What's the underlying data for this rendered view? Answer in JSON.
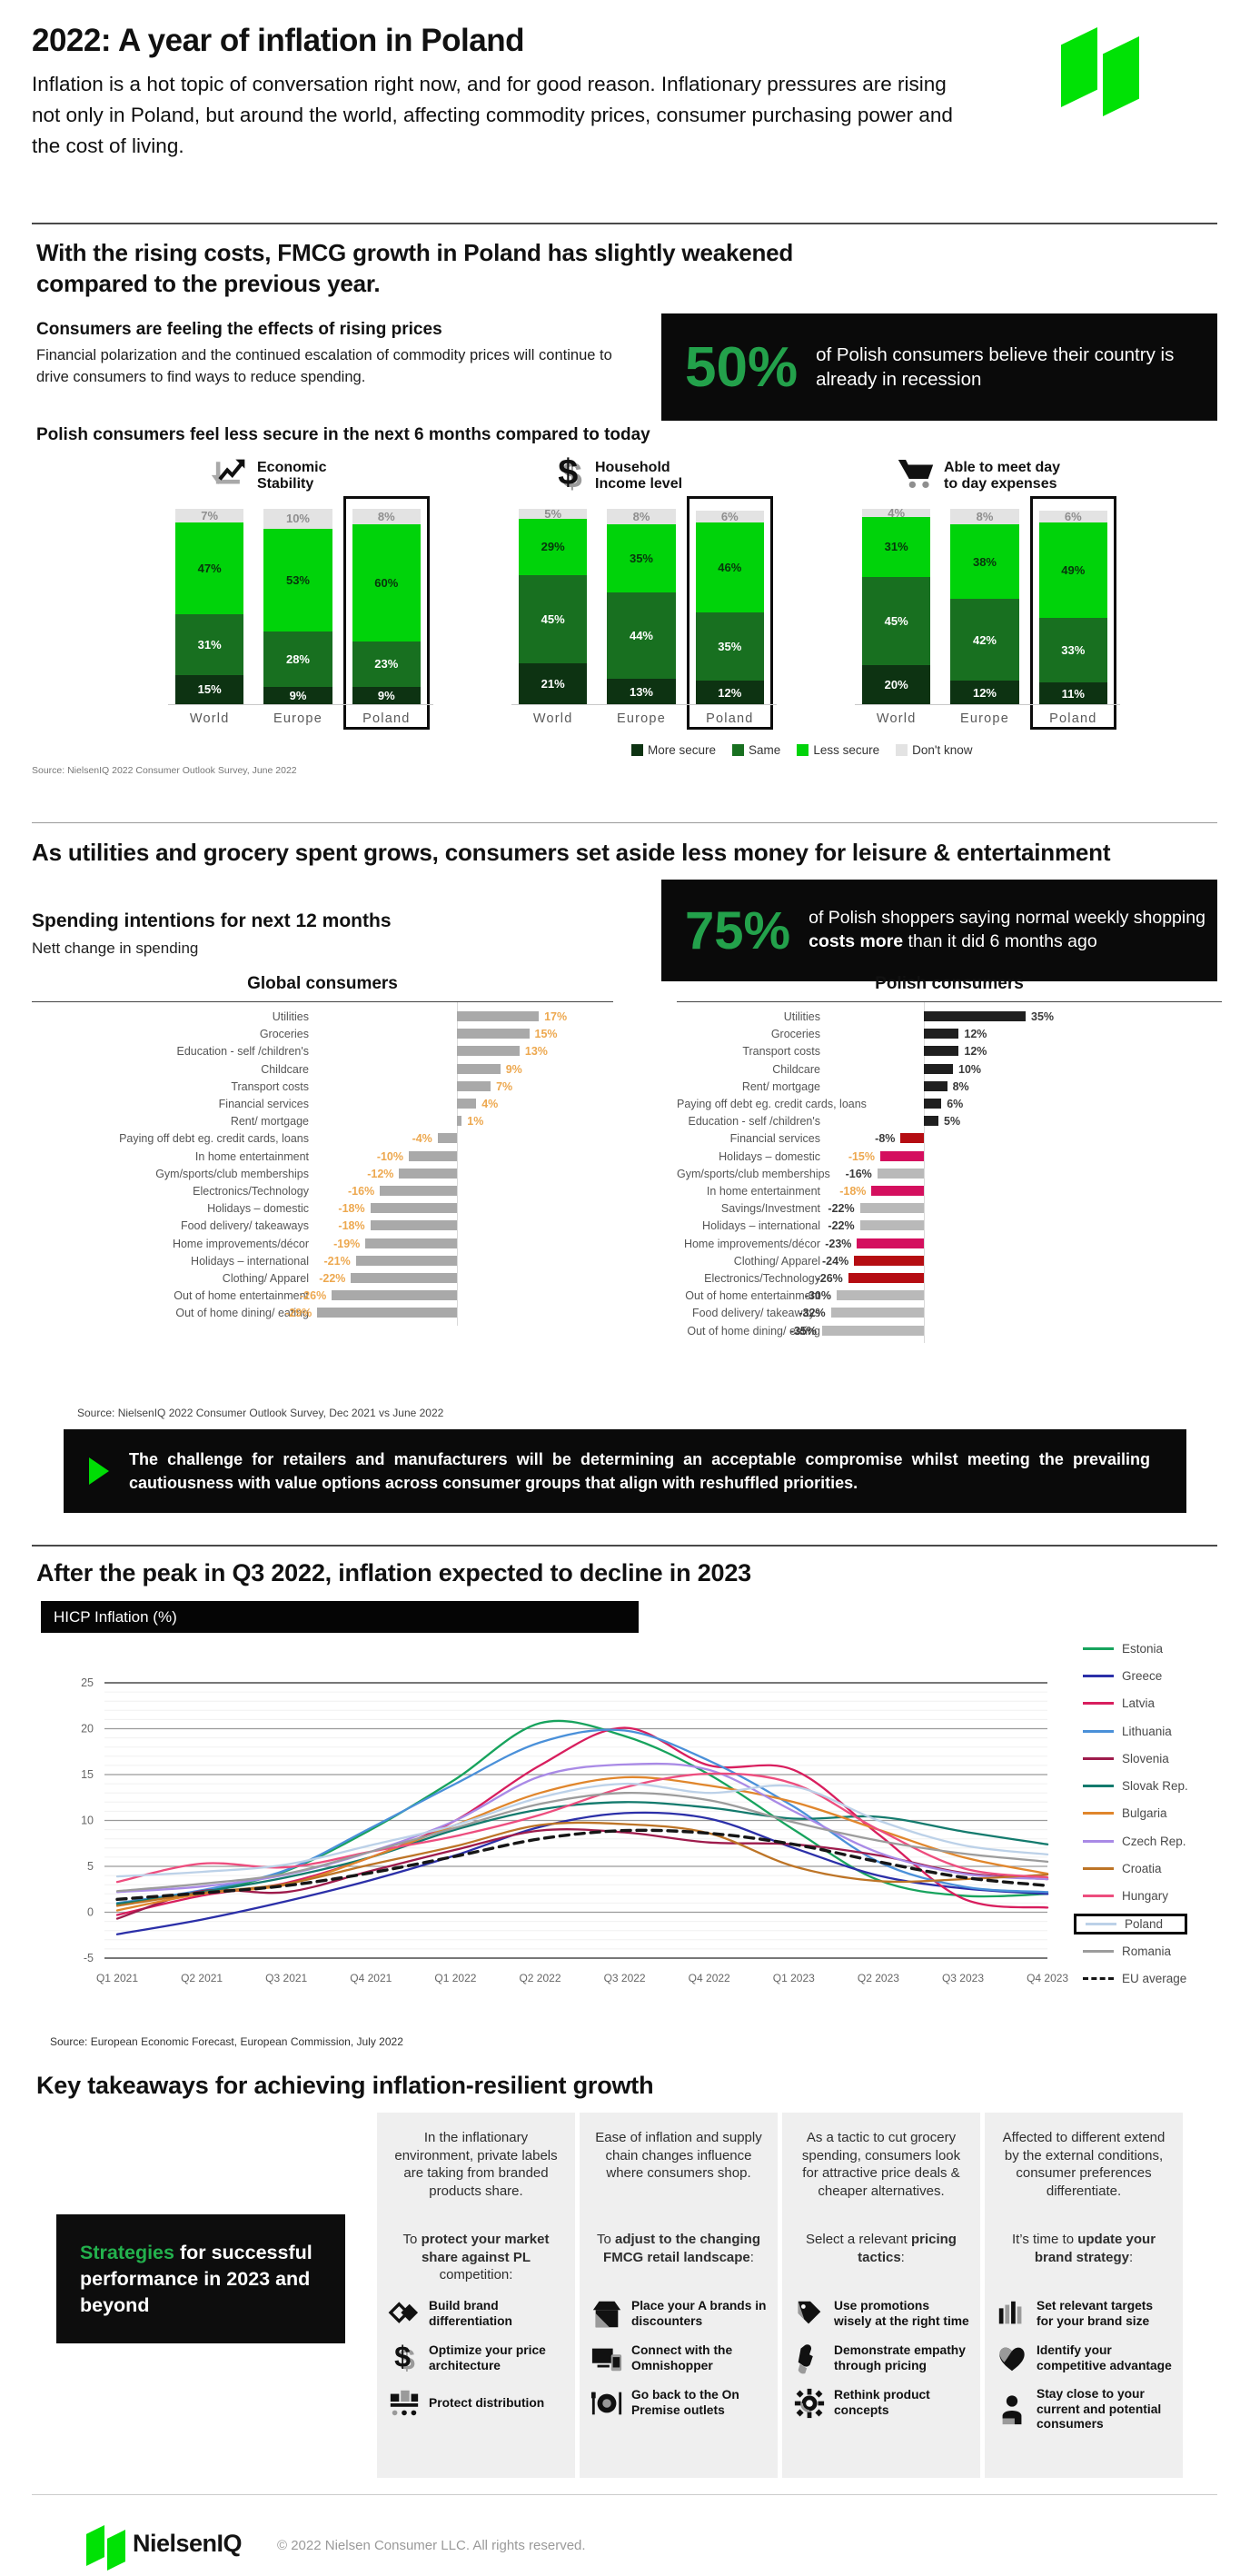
{
  "header": {
    "title": "2022: A year of inflation in Poland",
    "intro": "Inflation is a hot topic of conversation right now, and for good reason. Inflationary pressures are rising not only in Poland, but around the world, affecting commodity prices, consumer purchasing power and the cost of living.",
    "brand": "NielsenIQ"
  },
  "section_fmcg": {
    "heading": "With the rising costs, FMCG growth in Poland has slightly weakened compared to the previous year.",
    "lead_title": "Consumers are feeling the effects of rising prices",
    "lead_body": "Financial polarization and the continued escalation of commodity prices will continue to drive consumers to find ways to reduce spending.",
    "stat_value": "50%",
    "stat_text": "of Polish consumers believe their country is already in recession",
    "chart_title": "Polish consumers feel less secure in the next 6 months compared to today",
    "source": "Source: NielsenIQ 2022 Consumer Outlook Survey,  June 2022"
  },
  "section_spending": {
    "heading": "As utilities and grocery spent grows, consumers set aside less money for leisure & entertainment",
    "sub_title": "Spending intentions for next 12 months",
    "sub_note": "Nett change in spending",
    "stat_value": "75%",
    "stat_parts": [
      {
        "t": "of Polish shoppers saying normal weekly shopping "
      },
      {
        "t": "costs more",
        "b": true
      },
      {
        "t": " than it did 6 months ago"
      }
    ],
    "global_title": "Global consumers",
    "polish_title": "Polish consumers",
    "source": "Source: NielsenIQ 2022 Consumer Outlook Survey, Dec 2021  vs June 2022"
  },
  "callout": {
    "text": "The challenge for retailers and manufacturers will be determining an acceptable compromise whilst meeting the prevailing cautiousness with value options across consumer groups that align with reshuffled priorities."
  },
  "section_inflation": {
    "heading": "After the peak in Q3 2022, inflation expected to decline in 2023",
    "banner": "HICP Inflation (%)",
    "source": "Source:  European Economic Forecast, European Commission, July 2022"
  },
  "takeaways": {
    "heading": "Key takeaways for achieving inflation-resilient growth",
    "strategies_parts": [
      {
        "t": "Strategies",
        "g": true
      },
      {
        "t": " for successful performance in 2023 and beyond"
      }
    ],
    "columns": [
      {
        "intro": "In the inflationary environment, private labels are taking from branded products share.",
        "lead_parts": [
          {
            "t": "To "
          },
          {
            "t": "protect your market share against PL",
            "b": true
          },
          {
            "t": " competition:"
          }
        ],
        "items": [
          {
            "icon": "brand-differentiation-icon",
            "label": "Build brand differentiation"
          },
          {
            "icon": "price-architecture-icon",
            "label": "Optimize your price architecture"
          },
          {
            "icon": "distribution-icon",
            "label": "Protect distribution"
          }
        ]
      },
      {
        "intro": "Ease of inflation and supply chain changes influence where consumers shop.",
        "lead_parts": [
          {
            "t": "To "
          },
          {
            "t": "adjust to the changing FMCG retail landscape",
            "b": true
          },
          {
            "t": ":"
          }
        ],
        "items": [
          {
            "icon": "discounter-icon",
            "label": "Place your A brands in discounters"
          },
          {
            "icon": "omnishopper-icon",
            "label": "Connect with the Omnishopper"
          },
          {
            "icon": "on-premise-icon",
            "label": "Go back to the On Premise outlets"
          }
        ]
      },
      {
        "intro": "As a tactic to cut grocery spending, consumers look for attractive price deals & cheaper alternatives.",
        "lead_parts": [
          {
            "t": "Select a relevant "
          },
          {
            "t": "pricing tactics",
            "b": true
          },
          {
            "t": ":"
          }
        ],
        "items": [
          {
            "icon": "promotions-icon",
            "label": "Use promotions wisely at the right time"
          },
          {
            "icon": "empathy-pricing-icon",
            "label": "Demonstrate empathy through pricing"
          },
          {
            "icon": "product-concepts-icon",
            "label": "Rethink product concepts"
          }
        ]
      },
      {
        "intro": "Affected to different extend by the external conditions, consumer preferences differentiate.",
        "lead_parts": [
          {
            "t": "It’s time to "
          },
          {
            "t": "update your brand strategy",
            "b": true
          },
          {
            "t": ":"
          }
        ],
        "items": [
          {
            "icon": "brand-targets-icon",
            "label": "Set relevant targets for your brand size"
          },
          {
            "icon": "competitive-advantage-icon",
            "label": "Identify your competitive advantage"
          },
          {
            "icon": "consumer-closeness-icon",
            "label": "Stay close to your current and potential consumers"
          }
        ]
      }
    ]
  },
  "footer": {
    "brand": "NielsenIQ",
    "copyright": "© 2022 Nielsen Consumer LLC. All rights reserved."
  },
  "chart_data": [
    {
      "id": "consumer-security",
      "type": "bar",
      "subtype": "stacked-100",
      "title": "Polish consumers feel less secure in the next 6 months compared to today",
      "legend": [
        "More secure",
        "Same",
        "Less secure",
        "Don't know"
      ],
      "legend_position": "bottom",
      "colors": {
        "More secure": "#0d3312",
        "Same": "#187020",
        "Less secure": "#00d30a",
        "Don't know": "#e3e3e3"
      },
      "panels": [
        {
          "title": "Economic Stability",
          "title_lines": [
            "Economic",
            "Stability"
          ],
          "icon": "trend-decline-icon",
          "categories": [
            "World",
            "Europe",
            "Poland"
          ],
          "highlight": "Poland",
          "series": [
            {
              "name": "More secure",
              "values": [
                15,
                9,
                9
              ]
            },
            {
              "name": "Same",
              "values": [
                31,
                28,
                23
              ]
            },
            {
              "name": "Less secure",
              "values": [
                47,
                53,
                60
              ]
            },
            {
              "name": "Don't know",
              "values": [
                7,
                10,
                8
              ]
            }
          ]
        },
        {
          "title": "Household Income level",
          "title_lines": [
            "Household",
            "Income level"
          ],
          "icon": "dollar-icon",
          "categories": [
            "World",
            "Europe",
            "Poland"
          ],
          "highlight": "Poland",
          "series": [
            {
              "name": "More secure",
              "values": [
                21,
                13,
                12
              ]
            },
            {
              "name": "Same",
              "values": [
                45,
                44,
                35
              ]
            },
            {
              "name": "Less secure",
              "values": [
                29,
                35,
                46
              ]
            },
            {
              "name": "Don't know",
              "values": [
                5,
                8,
                6
              ]
            }
          ]
        },
        {
          "title": "Able to meet day to day expenses",
          "title_lines": [
            "Able to meet day",
            "to day expenses"
          ],
          "icon": "cart-icon",
          "categories": [
            "World",
            "Europe",
            "Poland"
          ],
          "highlight": "Poland",
          "series": [
            {
              "name": "More secure",
              "values": [
                20,
                12,
                11
              ]
            },
            {
              "name": "Same",
              "values": [
                45,
                42,
                33
              ]
            },
            {
              "name": "Less secure",
              "values": [
                31,
                38,
                49
              ]
            },
            {
              "name": "Don't know",
              "values": [
                4,
                8,
                6
              ]
            }
          ]
        }
      ]
    },
    {
      "id": "global-spending",
      "type": "bar",
      "orientation": "horizontal",
      "title": "Global consumers",
      "unit": "%",
      "bar_color": "#a9a9a9",
      "value_color": "#eda84f",
      "rows": [
        [
          "Utilities",
          17
        ],
        [
          "Groceries",
          15
        ],
        [
          "Education - self /children's",
          13
        ],
        [
          "Childcare",
          9
        ],
        [
          "Transport costs",
          7
        ],
        [
          "Financial services",
          4
        ],
        [
          "Rent/ mortgage",
          1
        ],
        [
          "Paying off debt eg. credit cards, loans",
          -4
        ],
        [
          "In home entertainment",
          -10
        ],
        [
          "Gym/sports/club memberships",
          -12
        ],
        [
          "Electronics/Technology",
          -16
        ],
        [
          "Holidays – domestic",
          -18
        ],
        [
          "Food delivery/ takeaways",
          -18
        ],
        [
          "Home improvements/décor",
          -19
        ],
        [
          "Holidays – international",
          -21
        ],
        [
          "Clothing/ Apparel",
          -22
        ],
        [
          "Out of home entertainment",
          -26
        ],
        [
          "Out of home dining/ eating",
          -29
        ]
      ]
    },
    {
      "id": "polish-spending",
      "type": "bar",
      "orientation": "horizontal",
      "title": "Polish consumers",
      "unit": "%",
      "colors": {
        "black": "#1f1f1f",
        "gray": "#b9b9b9",
        "darkred": "#b50d12",
        "crimson": "#d40f5e"
      },
      "value_colors": {
        "dark": "#3a3a3a",
        "orange": "#eda84f"
      },
      "rows": [
        [
          "Utilities",
          35,
          "black",
          "dark"
        ],
        [
          "Groceries",
          12,
          "black",
          "dark"
        ],
        [
          "Transport costs",
          12,
          "black",
          "dark"
        ],
        [
          "Childcare",
          10,
          "black",
          "dark"
        ],
        [
          "Rent/ mortgage",
          8,
          "black",
          "dark"
        ],
        [
          "Paying off debt eg. credit cards, loans",
          6,
          "black",
          "dark"
        ],
        [
          "Education - self /children's",
          5,
          "black",
          "dark"
        ],
        [
          "Financial services",
          -8,
          "darkred",
          "dark"
        ],
        [
          "Holidays – domestic",
          -15,
          "crimson",
          "orange"
        ],
        [
          "Gym/sports/club memberships",
          -16,
          "gray",
          "dark"
        ],
        [
          "In home entertainment",
          -18,
          "crimson",
          "orange"
        ],
        [
          "Savings/Investment",
          -22,
          "gray",
          "dark"
        ],
        [
          "Holidays – international",
          -22,
          "gray",
          "dark"
        ],
        [
          "Home improvements/décor",
          -23,
          "crimson",
          "dark"
        ],
        [
          "Clothing/ Apparel",
          -24,
          "darkred",
          "dark"
        ],
        [
          "Electronics/Technology",
          -26,
          "darkred",
          "dark"
        ],
        [
          "Out of home entertainment",
          -30,
          "gray",
          "dark"
        ],
        [
          "Food delivery/ takeaways",
          -32,
          "gray",
          "dark"
        ],
        [
          "Out of home dining/ eating",
          -35,
          "gray",
          "dark"
        ]
      ]
    },
    {
      "id": "hicp-inflation",
      "type": "line",
      "title": "HICP Inflation (%)",
      "x": [
        "Q1 2021",
        "Q2 2021",
        "Q3 2021",
        "Q4 2021",
        "Q1 2022",
        "Q2 2022",
        "Q3 2022",
        "Q4 2022",
        "Q1 2023",
        "Q2 2023",
        "Q3 2023",
        "Q4 2023"
      ],
      "ylim": [
        -5,
        25
      ],
      "yticks": [
        25,
        20,
        15,
        10,
        5,
        0,
        -5
      ],
      "grid": true,
      "legend_position": "right",
      "highlight_series": "Poland",
      "series": [
        {
          "name": "Estonia",
          "color": "#17a35d",
          "values": [
            1.0,
            2.2,
            4.5,
            9.0,
            14.5,
            20.6,
            19.2,
            15.0,
            9.0,
            3.5,
            1.8,
            2.0
          ]
        },
        {
          "name": "Greece",
          "color": "#2b2fa8",
          "values": [
            -2.4,
            -0.8,
            1.2,
            3.5,
            6.2,
            9.3,
            10.8,
            10.2,
            7.0,
            4.0,
            2.6,
            2.0
          ]
        },
        {
          "name": "Latvia",
          "color": "#d81e5e",
          "values": [
            -0.3,
            1.8,
            3.2,
            6.0,
            10.0,
            16.0,
            20.1,
            16.0,
            15.5,
            8.5,
            1.5,
            0.5
          ]
        },
        {
          "name": "Lithuania",
          "color": "#4a90d9",
          "values": [
            1.0,
            2.4,
            4.6,
            9.2,
            14.0,
            18.5,
            19.8,
            16.5,
            11.5,
            5.5,
            2.8,
            2.2
          ]
        },
        {
          "name": "Slovenia",
          "color": "#9e1b4c",
          "values": [
            -0.7,
            2.3,
            2.2,
            4.5,
            6.8,
            8.9,
            8.7,
            7.6,
            7.4,
            6.2,
            4.3,
            3.6
          ]
        },
        {
          "name": "Slovak Rep.",
          "color": "#137a6d",
          "values": [
            0.9,
            2.2,
            3.8,
            6.0,
            9.0,
            11.2,
            12.0,
            11.4,
            10.2,
            10.4,
            8.8,
            7.4
          ]
        },
        {
          "name": "Bulgaria",
          "color": "#e0862c",
          "values": [
            0.2,
            2.0,
            3.0,
            6.0,
            9.5,
            13.0,
            14.7,
            13.8,
            12.0,
            9.0,
            6.0,
            4.2
          ]
        },
        {
          "name": "Czech Rep.",
          "color": "#a98ae6",
          "values": [
            2.2,
            2.8,
            4.1,
            6.6,
            10.0,
            14.8,
            16.1,
            15.5,
            11.0,
            6.5,
            4.2,
            3.6
          ]
        },
        {
          "name": "Croatia",
          "color": "#bd7426",
          "values": [
            0.7,
            2.1,
            3.1,
            5.2,
            7.2,
            9.5,
            9.6,
            8.6,
            5.0,
            3.4,
            3.6,
            4.1
          ]
        },
        {
          "name": "Hungary",
          "color": "#ed4d7e",
          "values": [
            3.3,
            5.3,
            4.9,
            6.6,
            8.3,
            10.6,
            13.6,
            15.1,
            14.0,
            9.0,
            4.8,
            3.8
          ]
        },
        {
          "name": "Poland",
          "color": "#bcd1e8",
          "values": [
            3.9,
            4.4,
            5.2,
            7.3,
            9.5,
            12.5,
            14.0,
            13.0,
            13.7,
            10.0,
            7.3,
            6.3
          ]
        },
        {
          "name": "Romania",
          "color": "#9c9c9c",
          "values": [
            2.3,
            3.1,
            4.2,
            6.6,
            9.2,
            11.8,
            13.0,
            12.2,
            9.8,
            7.8,
            6.4,
            5.5
          ]
        },
        {
          "name": "EU average",
          "color": "#161616",
          "dashed": true,
          "values": [
            1.4,
            2.1,
            2.9,
            4.3,
            6.1,
            8.0,
            8.9,
            8.6,
            7.4,
            5.5,
            3.8,
            2.9
          ]
        }
      ]
    }
  ]
}
